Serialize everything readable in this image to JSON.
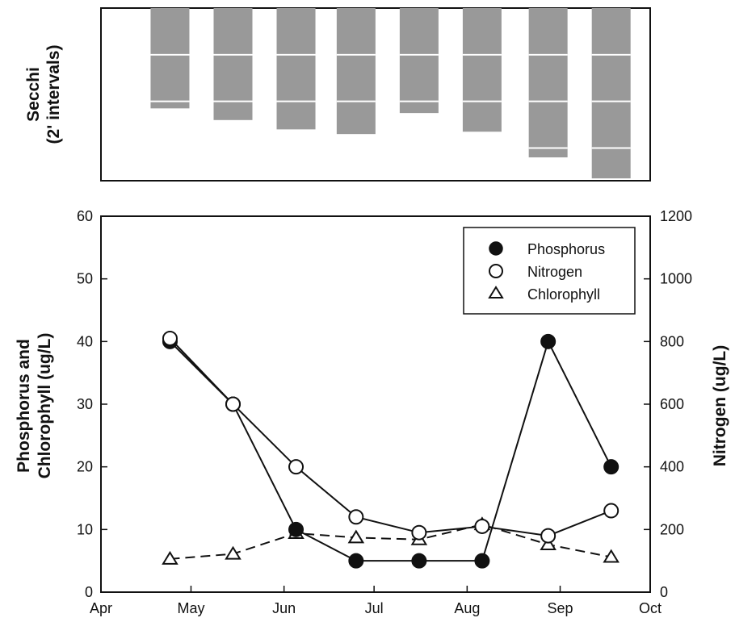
{
  "chart_data": [
    {
      "type": "bar",
      "ylabel_line1": "Secchi",
      "ylabel_line2": "(2' intervals)",
      "xlabel": "",
      "x": [
        "2024-04-24",
        "2024-05-15",
        "2024-06-05",
        "2024-06-25",
        "2024-07-16",
        "2024-08-06",
        "2024-08-28",
        "2024-09-18"
      ],
      "values": [
        4.3,
        4.8,
        5.2,
        5.4,
        4.5,
        5.3,
        6.4,
        7.3
      ],
      "interval": 2,
      "ylim": [
        0,
        7.4
      ],
      "inverted": true,
      "colors": {
        "bar": "#999999",
        "interval_line": "#ffffff"
      }
    },
    {
      "type": "line",
      "ylabel_line1": "Phosphorus and",
      "ylabel_line2": "Chlorophyll (ug/L)",
      "y2label": "Nitrogen (ug/L)",
      "xlabel": "",
      "xticks": [
        {
          "date": "2024-04-01",
          "label": "Apr"
        },
        {
          "date": "2024-05-01",
          "label": "May"
        },
        {
          "date": "2024-06-01",
          "label": "Jun"
        },
        {
          "date": "2024-07-01",
          "label": "Jul"
        },
        {
          "date": "2024-08-01",
          "label": "Aug"
        },
        {
          "date": "2024-09-01",
          "label": "Sep"
        },
        {
          "date": "2024-10-01",
          "label": "Oct"
        }
      ],
      "xlim": [
        "2024-04-01",
        "2024-10-01"
      ],
      "ylim": [
        0,
        60
      ],
      "yticks": [
        "0",
        "10",
        "20",
        "30",
        "40",
        "50",
        "60"
      ],
      "y2lim": [
        0,
        1200
      ],
      "y2ticks": [
        "0",
        "200",
        "400",
        "600",
        "800",
        "1000",
        "1200"
      ],
      "legend_position": "top-right",
      "series": [
        {
          "name": "Phosphorus",
          "axis": "left",
          "marker": "filled-circle",
          "line": "solid",
          "x": [
            "2024-04-24",
            "2024-05-15",
            "2024-06-05",
            "2024-06-25",
            "2024-07-16",
            "2024-08-06",
            "2024-08-28",
            "2024-09-18"
          ],
          "values": [
            40,
            30,
            10,
            5,
            5,
            5,
            40,
            20
          ]
        },
        {
          "name": "Nitrogen",
          "axis": "right",
          "marker": "open-circle",
          "line": "solid",
          "x": [
            "2024-04-24",
            "2024-05-15",
            "2024-06-05",
            "2024-06-25",
            "2024-07-16",
            "2024-08-06",
            "2024-08-28",
            "2024-09-18"
          ],
          "values": [
            810,
            600,
            400,
            240,
            190,
            210,
            180,
            260
          ]
        },
        {
          "name": "Chlorophyll",
          "axis": "left",
          "marker": "open-triangle",
          "line": "dashed",
          "x": [
            "2024-04-24",
            "2024-05-15",
            "2024-06-05",
            "2024-06-25",
            "2024-07-16",
            "2024-08-06",
            "2024-08-28",
            "2024-09-18"
          ],
          "values": [
            5.3,
            6.1,
            9.4,
            8.7,
            8.4,
            10.8,
            7.6,
            5.6
          ]
        }
      ],
      "colors": {
        "line": "#111111",
        "marker_fill_open": "#ffffff",
        "marker_fill_filled": "#111111"
      }
    }
  ]
}
